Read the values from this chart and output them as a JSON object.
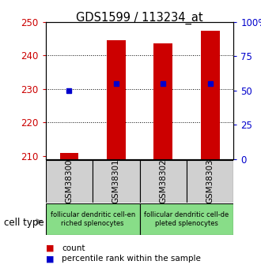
{
  "title": "GDS1599 / 113234_at",
  "samples": [
    "GSM38300",
    "GSM38301",
    "GSM38302",
    "GSM38303"
  ],
  "counts": [
    210.8,
    244.5,
    243.5,
    247.2
  ],
  "percentile_ranks": [
    50,
    55,
    55,
    55
  ],
  "ylim_left": [
    209,
    250
  ],
  "ylim_right": [
    0,
    100
  ],
  "yticks_left": [
    210,
    220,
    230,
    240,
    250
  ],
  "yticks_right": [
    0,
    25,
    50,
    75,
    100
  ],
  "ytick_labels_right": [
    "0",
    "25",
    "50",
    "75",
    "100%"
  ],
  "bar_color": "#cc0000",
  "dot_color": "#0000cc",
  "bar_bottom": 209,
  "cell_type_labels": [
    "follicular dendritic cell-en\nriched splenocytes",
    "follicular dendritic cell-de\npleted splenocytes"
  ],
  "tick_color_left": "#cc0000",
  "tick_color_right": "#0000cc",
  "legend_count_color": "#cc0000",
  "legend_pct_color": "#0000cc",
  "sample_box_color": "#d0d0d0",
  "group_box_color": "#88dd88",
  "background_color": "#ffffff",
  "grid_dotted_ticks": [
    220,
    230,
    240
  ],
  "bar_width": 0.4
}
